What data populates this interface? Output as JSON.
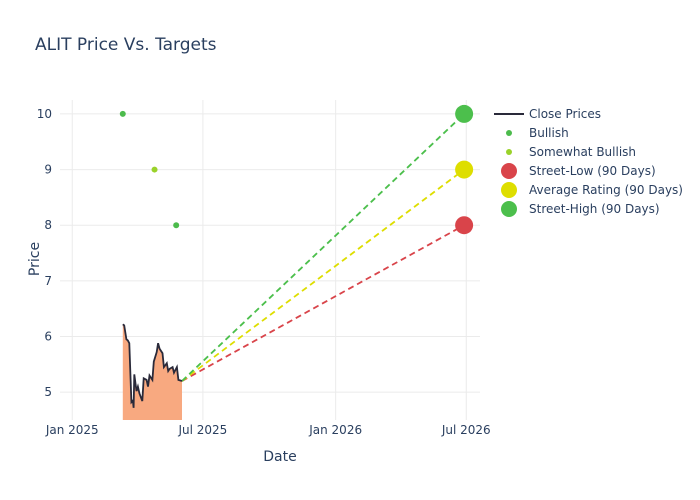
{
  "chart_data": {
    "type": "line",
    "title": "ALIT Price Vs. Targets",
    "xlabel": "Date",
    "ylabel": "Price",
    "xlim": [
      "2024-12-15",
      "2026-07-20"
    ],
    "ylim": [
      4.5,
      10.25
    ],
    "x_ticks": [
      {
        "date": "2025-01-01",
        "label": "Jan 2025"
      },
      {
        "date": "2025-07-01",
        "label": "Jul 2025"
      },
      {
        "date": "2026-01-01",
        "label": "Jan 2026"
      },
      {
        "date": "2026-07-01",
        "label": "Jul 2026"
      }
    ],
    "y_ticks": [
      5,
      6,
      7,
      8,
      9,
      10
    ],
    "close_prices": {
      "name": "Close Prices",
      "color": "#2a2a3a",
      "fill_color": "#f8a980",
      "points": [
        [
          "2025-03-12",
          6.22
        ],
        [
          "2025-03-14",
          6.2
        ],
        [
          "2025-03-17",
          5.95
        ],
        [
          "2025-03-19",
          5.93
        ],
        [
          "2025-03-21",
          5.88
        ],
        [
          "2025-03-24",
          4.82
        ],
        [
          "2025-03-26",
          4.85
        ],
        [
          "2025-03-27",
          4.72
        ],
        [
          "2025-03-28",
          5.32
        ],
        [
          "2025-03-31",
          5.02
        ],
        [
          "2025-04-02",
          5.1
        ],
        [
          "2025-04-04",
          4.98
        ],
        [
          "2025-04-08",
          4.84
        ],
        [
          "2025-04-10",
          5.25
        ],
        [
          "2025-04-14",
          5.22
        ],
        [
          "2025-04-16",
          5.1
        ],
        [
          "2025-04-18",
          5.3
        ],
        [
          "2025-04-22",
          5.22
        ],
        [
          "2025-04-24",
          5.55
        ],
        [
          "2025-04-28",
          5.72
        ],
        [
          "2025-04-30",
          5.88
        ],
        [
          "2025-05-02",
          5.78
        ],
        [
          "2025-05-06",
          5.7
        ],
        [
          "2025-05-08",
          5.45
        ],
        [
          "2025-05-12",
          5.52
        ],
        [
          "2025-05-14",
          5.38
        ],
        [
          "2025-05-16",
          5.42
        ],
        [
          "2025-05-20",
          5.45
        ],
        [
          "2025-05-22",
          5.35
        ],
        [
          "2025-05-26",
          5.45
        ],
        [
          "2025-05-28",
          5.22
        ],
        [
          "2025-06-02",
          5.2
        ]
      ]
    },
    "analyst_ratings": [
      {
        "name": "Bullish",
        "color": "#4cbb4c",
        "points": [
          [
            "2025-03-12",
            10
          ],
          [
            "2025-05-25",
            8
          ]
        ]
      },
      {
        "name": "Somewhat Bullish",
        "color": "#9ad22a",
        "points": [
          [
            "2025-04-25",
            9
          ]
        ]
      }
    ],
    "targets": [
      {
        "name": "Street-Low (90 Days)",
        "color": "#d9444a",
        "date": "2026-06-28",
        "value": 8
      },
      {
        "name": "Average Rating (90 Days)",
        "color": "#dede00",
        "date": "2026-06-28",
        "value": 9
      },
      {
        "name": "Street-High (90 Days)",
        "color": "#4cbf4c",
        "date": "2026-06-28",
        "value": 10
      }
    ],
    "projection_start": {
      "date": "2025-06-02",
      "value": 5.2
    },
    "legend": {
      "position": "right",
      "items": [
        {
          "label": "Close Prices",
          "kind": "line",
          "color": "#2a2a3a"
        },
        {
          "label": "Bullish",
          "kind": "dot",
          "color": "#4cbb4c"
        },
        {
          "label": "Somewhat Bullish",
          "kind": "dot",
          "color": "#9ad22a"
        },
        {
          "label": "Street-Low (90 Days)",
          "kind": "big",
          "color": "#d9444a"
        },
        {
          "label": "Average Rating (90 Days)",
          "kind": "big",
          "color": "#dede00"
        },
        {
          "label": "Street-High (90 Days)",
          "kind": "big",
          "color": "#4cbf4c"
        }
      ]
    }
  }
}
